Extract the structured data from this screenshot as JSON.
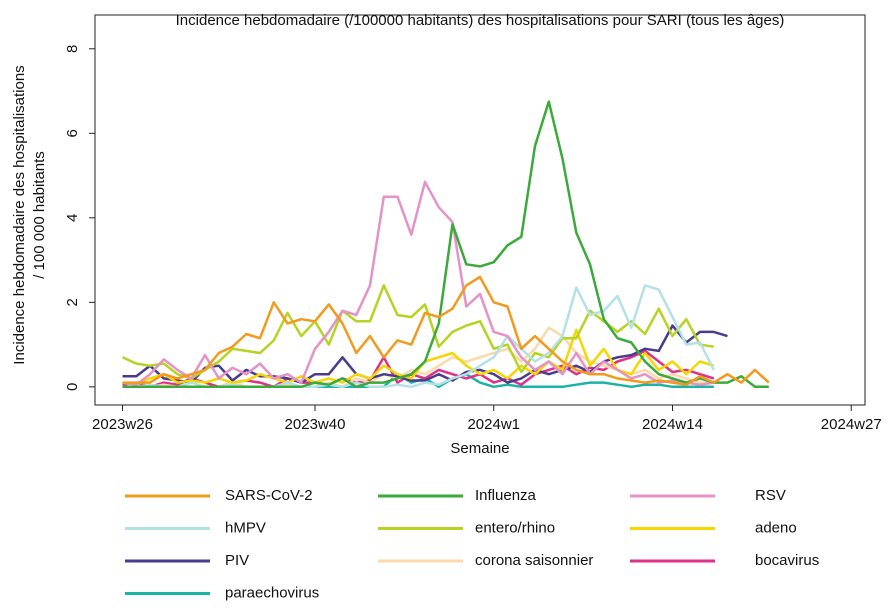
{
  "chart_data": {
    "type": "line",
    "title": "Incidence hebdomadaire (/100000 habitants) des hospitalisations pour SARI (tous les âges)",
    "xlabel": "Semaine",
    "ylabel": [
      "Incidence hebdomadaire des hospitalisations",
      "/ 100 000 habitants"
    ],
    "x": [
      0,
      1,
      2,
      3,
      4,
      5,
      6,
      7,
      8,
      9,
      10,
      11,
      12,
      13,
      14,
      15,
      16,
      17,
      18,
      19,
      20,
      21,
      22,
      23,
      24,
      25,
      26,
      27,
      28,
      29,
      30,
      31,
      32,
      33,
      34,
      35,
      36,
      37,
      38,
      39,
      40,
      41,
      42,
      43,
      44,
      45,
      46,
      47
    ],
    "xlim": [
      -2,
      54
    ],
    "xticks": [
      {
        "value": 0,
        "label": "2023w26"
      },
      {
        "value": 14,
        "label": "2023w40"
      },
      {
        "value": 27,
        "label": "2024w1"
      },
      {
        "value": 40,
        "label": "2024w14"
      },
      {
        "value": 53,
        "label": "2024w27"
      }
    ],
    "ylim": [
      -0.43,
      8.8
    ],
    "yticks": [
      0,
      2,
      4,
      6,
      8
    ],
    "grid": false,
    "series": [
      {
        "name": "SARS-CoV-2",
        "color": "#f39a1e",
        "values": [
          0.1,
          0.1,
          0.1,
          0.3,
          0.2,
          0.3,
          0.4,
          0.8,
          0.95,
          1.25,
          1.15,
          2.0,
          1.5,
          1.6,
          1.55,
          1.95,
          1.5,
          0.8,
          1.2,
          0.7,
          1.1,
          1.0,
          1.75,
          1.65,
          1.85,
          2.4,
          2.6,
          2.0,
          1.9,
          0.9,
          1.2,
          0.9,
          0.6,
          0.4,
          0.3,
          0.3,
          0.2,
          0.15,
          0.1,
          0.15,
          0.1,
          0.05,
          0.25,
          0.1,
          0.3,
          0.1,
          0.4,
          0.1
        ]
      },
      {
        "name": "Influenza",
        "color": "#3aaa3a",
        "values": [
          0,
          0,
          0,
          0,
          0,
          0,
          0,
          0,
          0,
          0,
          0,
          0,
          0,
          0,
          0.1,
          0.05,
          0.2,
          0,
          0.1,
          0.1,
          0.2,
          0.3,
          0.6,
          1.5,
          3.85,
          2.9,
          2.85,
          2.95,
          3.35,
          3.55,
          5.7,
          6.75,
          5.4,
          3.65,
          2.9,
          1.6,
          1.15,
          1.05,
          0.6,
          0.3,
          0.2,
          0.1,
          0.2,
          0.1,
          0.1,
          0.25,
          0,
          0
        ]
      },
      {
        "name": "RSV",
        "color": "#e592c6",
        "values": [
          0.1,
          0.05,
          0.3,
          0.65,
          0.4,
          0.2,
          0.75,
          0.2,
          0.45,
          0.3,
          0.55,
          0.2,
          0.3,
          0.1,
          0.9,
          1.3,
          1.8,
          1.7,
          2.4,
          4.5,
          4.5,
          3.6,
          4.85,
          4.25,
          3.9,
          1.9,
          2.2,
          1.3,
          1.2,
          0.7,
          0.4,
          0.6,
          0.3,
          0.8,
          0.3,
          0.6,
          0.4,
          0.2,
          0.3,
          0.1,
          0.15,
          0.1,
          0.05,
          0.1,
          null,
          null,
          null,
          null
        ]
      },
      {
        "name": "hMPV",
        "color": "#b4e1e8",
        "values": [
          0,
          0,
          0.05,
          0,
          0,
          0.1,
          0,
          0,
          0.05,
          0,
          0,
          0,
          0.1,
          0,
          0,
          0.05,
          0,
          0.1,
          0,
          0,
          0.05,
          0,
          0.1,
          0.05,
          0.2,
          0.3,
          0.5,
          0.7,
          1.2,
          0.9,
          0.6,
          0.8,
          1.2,
          2.35,
          1.7,
          1.8,
          2.15,
          1.4,
          2.4,
          2.3,
          1.65,
          1.0,
          1.05,
          0.4,
          null,
          null,
          null,
          null
        ]
      },
      {
        "name": "entero/rhino",
        "color": "#b5d422",
        "values": [
          0.7,
          0.55,
          0.5,
          0.55,
          0.3,
          0.2,
          0.4,
          0.6,
          0.9,
          0.85,
          0.8,
          1.1,
          1.75,
          1.2,
          1.55,
          1.0,
          1.8,
          1.55,
          1.55,
          2.4,
          1.7,
          1.65,
          1.95,
          0.95,
          1.3,
          1.45,
          1.55,
          0.9,
          1.0,
          0.35,
          0.8,
          0.7,
          1.15,
          1.15,
          1.8,
          1.55,
          1.3,
          1.55,
          1.25,
          1.85,
          1.2,
          1.6,
          1.0,
          0.95,
          null,
          null,
          null,
          null
        ]
      },
      {
        "name": "adeno",
        "color": "#f5d700",
        "values": [
          0.1,
          0.05,
          0.2,
          0.3,
          0.1,
          0.15,
          0.1,
          0.2,
          0.1,
          0.15,
          0.3,
          0.2,
          0.1,
          0.25,
          0.1,
          0.2,
          0.1,
          0.3,
          0.2,
          0.5,
          0.3,
          0.2,
          0.6,
          0.7,
          0.8,
          0.5,
          0.3,
          0.4,
          0.2,
          0.5,
          0.3,
          0.6,
          0.4,
          1.35,
          0.5,
          0.9,
          0.4,
          0.3,
          0.8,
          0.4,
          0.6,
          0.3,
          0.6,
          0.5,
          null,
          null,
          null,
          null
        ]
      },
      {
        "name": "PIV",
        "color": "#4b3b8c",
        "values": [
          0.25,
          0.25,
          0.5,
          0.2,
          0.15,
          0.1,
          0.45,
          0.5,
          0.15,
          0.4,
          0.25,
          0.25,
          0.2,
          0.1,
          0.3,
          0.3,
          0.7,
          0.3,
          0.2,
          0.3,
          0.25,
          0.15,
          0.15,
          0.3,
          0.15,
          0.35,
          0.4,
          0.3,
          0.1,
          0.2,
          0.4,
          0.3,
          0.4,
          0.5,
          0.35,
          0.6,
          0.7,
          0.75,
          0.9,
          0.85,
          1.45,
          1.05,
          1.3,
          1.3,
          1.2,
          null,
          null,
          null
        ]
      },
      {
        "name": "corona saisonnier",
        "color": "#fbd9a9",
        "values": [
          0,
          0,
          0,
          0.05,
          0,
          0,
          0,
          0,
          0.1,
          0,
          0,
          0,
          0.05,
          0,
          0,
          0.1,
          0,
          0.2,
          0.1,
          0.3,
          0.2,
          0.4,
          0.3,
          0.5,
          0.7,
          0.6,
          0.7,
          0.8,
          0.9,
          0.6,
          0.9,
          1.4,
          1.2,
          0.8,
          0.6,
          0.5,
          0.4,
          0.3,
          0.4,
          0.2,
          0.3,
          0.2,
          0.1,
          0.1,
          null,
          null,
          null,
          null
        ]
      },
      {
        "name": "bocavirus",
        "color": "#e0308b",
        "values": [
          0.05,
          0.1,
          0,
          0.1,
          0.05,
          0.2,
          0.1,
          0,
          0.1,
          0.15,
          0.1,
          0,
          0.2,
          0.1,
          0.1,
          0.05,
          0.2,
          0.1,
          0.15,
          0.7,
          0.1,
          0.3,
          0.2,
          0.4,
          0.3,
          0.2,
          0.3,
          0.1,
          0.2,
          0.05,
          0.3,
          0.4,
          0.5,
          0.3,
          0.45,
          0.4,
          0.6,
          0.7,
          0.85,
          0.6,
          0.35,
          0.4,
          0.3,
          0.2,
          null,
          null,
          null,
          null
        ]
      },
      {
        "name": "paraechovirus",
        "color": "#1bb3a6",
        "values": [
          0,
          0,
          0,
          0,
          0,
          0,
          0,
          0,
          0,
          0,
          0,
          0,
          0,
          0,
          0,
          0,
          0,
          0,
          0,
          0,
          0.3,
          0.1,
          0.2,
          0,
          0.2,
          0.3,
          0.1,
          0,
          0.05,
          0,
          0,
          0,
          0,
          0.05,
          0.1,
          0.1,
          0.05,
          0,
          0.05,
          0.05,
          0,
          0,
          0,
          0,
          null,
          null,
          null,
          null
        ]
      }
    ]
  }
}
